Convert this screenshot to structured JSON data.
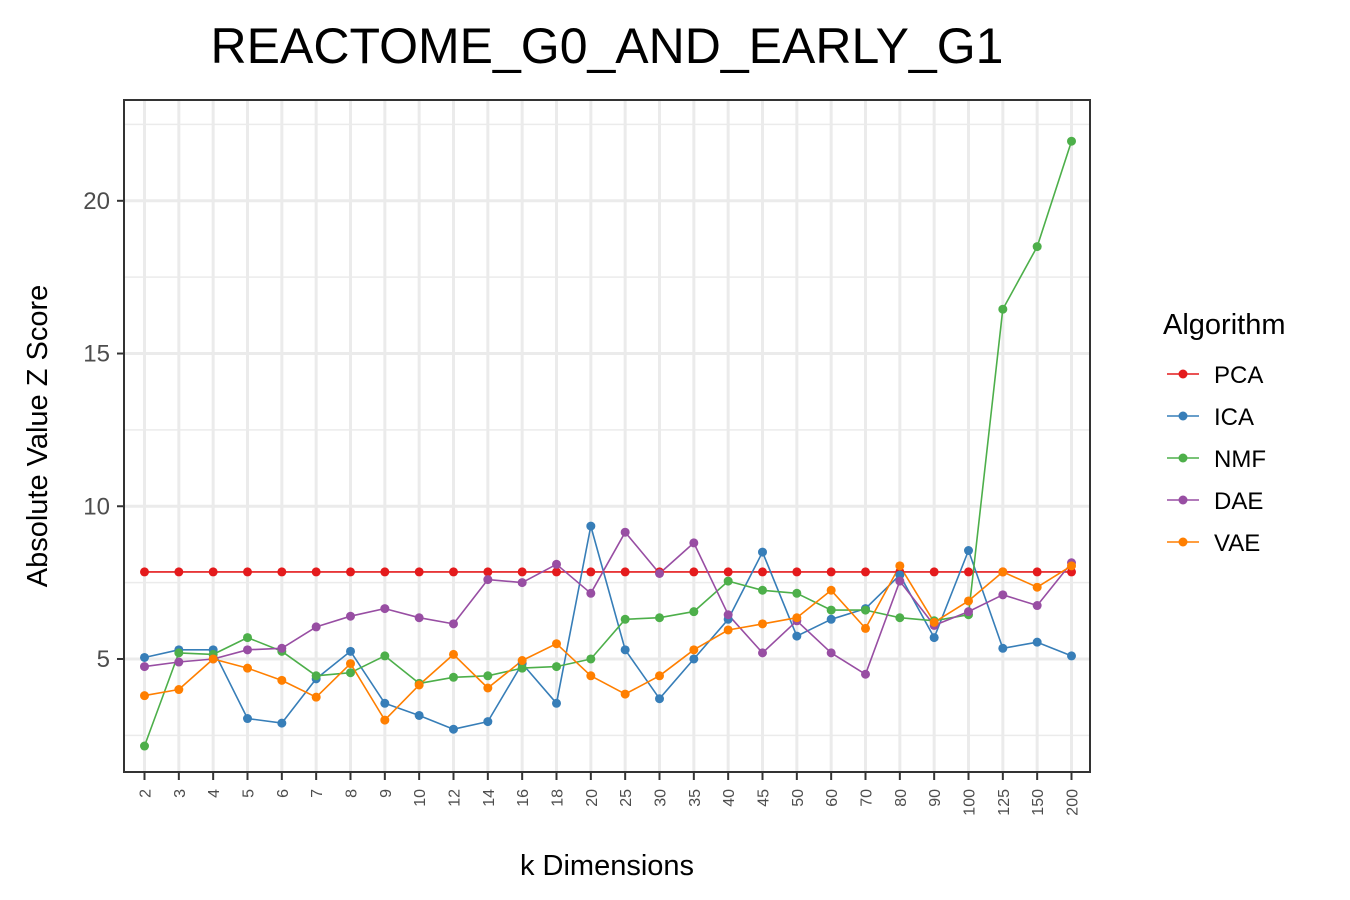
{
  "chart_data": {
    "type": "line",
    "title": "REACTOME_G0_AND_EARLY_G1",
    "xlabel": "k Dimensions",
    "ylabel": "Absolute Value Z Score",
    "x": [
      "2",
      "3",
      "4",
      "5",
      "6",
      "7",
      "8",
      "9",
      "10",
      "12",
      "14",
      "16",
      "18",
      "20",
      "25",
      "30",
      "35",
      "40",
      "45",
      "50",
      "60",
      "70",
      "80",
      "90",
      "100",
      "125",
      "150",
      "200"
    ],
    "yticks": [
      5,
      10,
      15,
      20
    ],
    "ylim": [
      1.3,
      23.3
    ],
    "grid": true,
    "legend": {
      "title": "Algorithm",
      "position": "right"
    },
    "series": [
      {
        "name": "PCA",
        "color": "#e41a1c",
        "values": [
          7.85,
          7.85,
          7.85,
          7.85,
          7.85,
          7.85,
          7.85,
          7.85,
          7.85,
          7.85,
          7.85,
          7.85,
          7.85,
          7.85,
          7.85,
          7.85,
          7.85,
          7.85,
          7.85,
          7.85,
          7.85,
          7.85,
          7.85,
          7.85,
          7.85,
          7.85,
          7.85,
          7.85
        ]
      },
      {
        "name": "ICA",
        "color": "#377eb8",
        "values": [
          5.05,
          5.3,
          5.3,
          3.05,
          2.9,
          4.35,
          5.25,
          3.55,
          3.15,
          2.7,
          2.95,
          4.85,
          3.55,
          9.35,
          5.3,
          3.7,
          5.0,
          6.3,
          8.5,
          5.75,
          6.3,
          6.65,
          7.75,
          5.7,
          8.55,
          5.35,
          5.55,
          5.1
        ]
      },
      {
        "name": "NMF",
        "color": "#4daf4a",
        "values": [
          2.15,
          5.2,
          5.15,
          5.7,
          5.25,
          4.45,
          4.55,
          5.1,
          4.2,
          4.4,
          4.45,
          4.7,
          4.75,
          5.0,
          6.3,
          6.35,
          6.55,
          7.55,
          7.25,
          7.15,
          6.6,
          6.6,
          6.35,
          6.25,
          6.45,
          16.45,
          18.5,
          21.95
        ]
      },
      {
        "name": "DAE",
        "color": "#984ea3",
        "values": [
          4.75,
          4.9,
          5.0,
          5.3,
          5.35,
          6.05,
          6.4,
          6.65,
          6.35,
          6.15,
          7.6,
          7.5,
          8.1,
          7.15,
          9.15,
          7.8,
          8.8,
          6.45,
          5.2,
          6.25,
          5.2,
          4.5,
          7.55,
          6.1,
          6.55,
          7.1,
          6.75,
          8.15
        ]
      },
      {
        "name": "VAE",
        "color": "#ff7f00",
        "values": [
          3.8,
          4.0,
          5.0,
          4.7,
          4.3,
          3.75,
          4.85,
          3.0,
          4.15,
          5.15,
          4.05,
          4.95,
          5.5,
          4.45,
          3.85,
          4.45,
          5.3,
          5.95,
          6.15,
          6.35,
          7.25,
          6.0,
          8.05,
          6.2,
          6.9,
          7.85,
          7.35,
          8.05
        ]
      }
    ]
  }
}
